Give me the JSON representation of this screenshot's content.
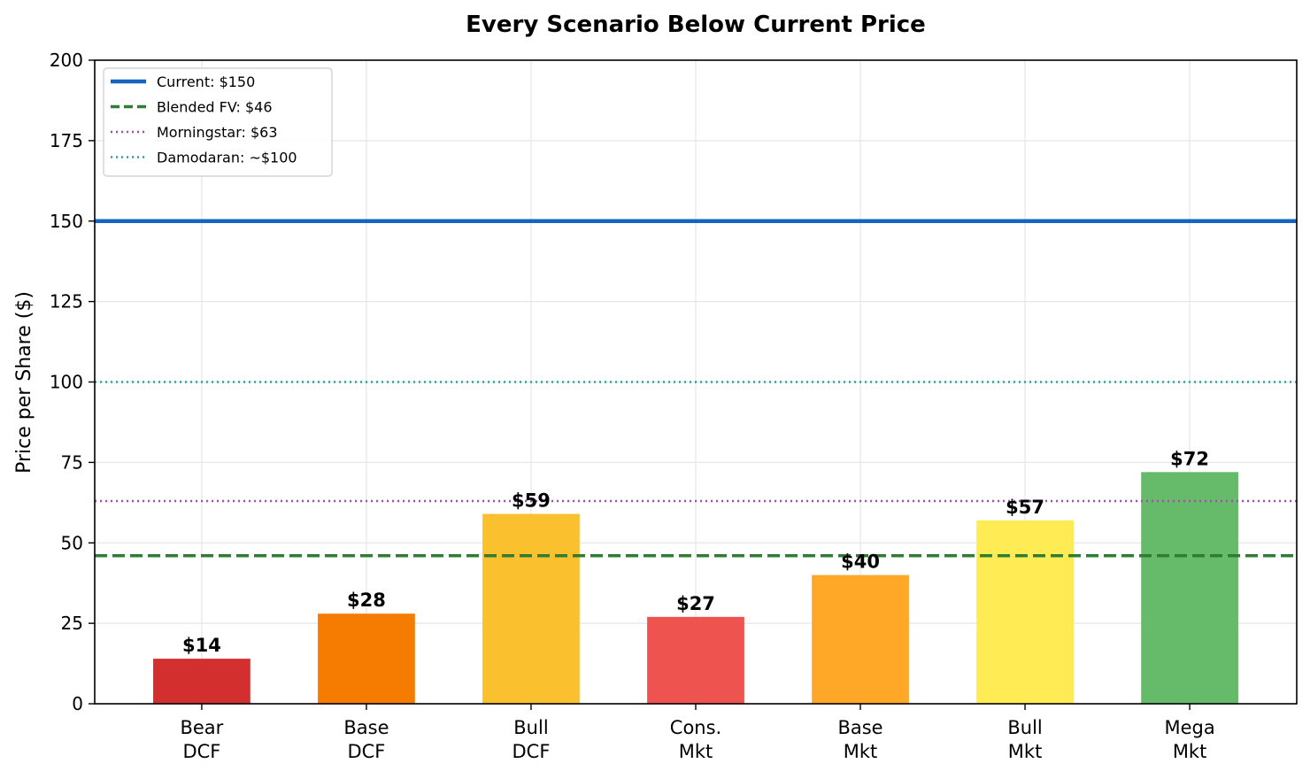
{
  "chart_data": {
    "type": "bar",
    "title": "Every Scenario Below Current Price",
    "ylabel": "Price per Share ($)",
    "xlabel": "",
    "ylim": [
      0,
      200
    ],
    "yticks": [
      0,
      25,
      50,
      75,
      100,
      125,
      150,
      175,
      200
    ],
    "grid": true,
    "legend_placement": "top-left",
    "categories": [
      [
        "Bear",
        "DCF"
      ],
      [
        "Base",
        "DCF"
      ],
      [
        "Bull",
        "DCF"
      ],
      [
        "Cons.",
        "Mkt"
      ],
      [
        "Base",
        "Mkt"
      ],
      [
        "Bull",
        "Mkt"
      ],
      [
        "Mega",
        "Mkt"
      ]
    ],
    "values": [
      14,
      28,
      59,
      27,
      40,
      57,
      72
    ],
    "data_labels": [
      "$14",
      "$28",
      "$59",
      "$27",
      "$40",
      "$57",
      "$72"
    ],
    "bar_colors": [
      "#d32f2f",
      "#f57c00",
      "#fbc02d",
      "#ef5350",
      "#ffa726",
      "#ffeb53",
      "#66bb6a"
    ],
    "reference_lines": [
      {
        "name": "Current: $150",
        "value": 150,
        "color": "#1565c0",
        "style": "solid"
      },
      {
        "name": "Blended FV: $46",
        "value": 46,
        "color": "#2e7d32",
        "style": "dashed"
      },
      {
        "name": "Morningstar: $63",
        "value": 63,
        "color": "#ab47bc",
        "style": "dotted"
      },
      {
        "name": "Damodaran: ~$100",
        "value": 100,
        "color": "#26a69a",
        "style": "dotted"
      }
    ]
  }
}
